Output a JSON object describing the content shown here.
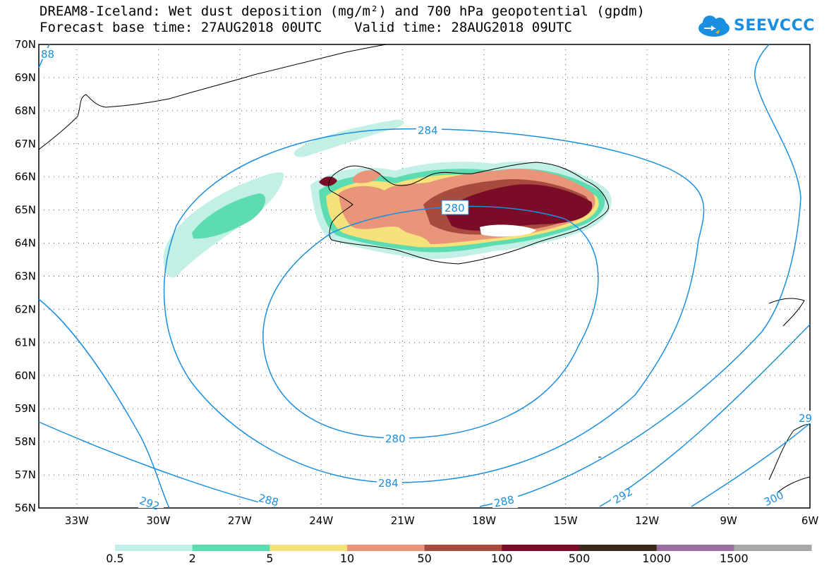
{
  "title": {
    "line1": "DREAM8-Iceland: Wet dust deposition (mg/m²) and 700 hPa geopotential (gpdm)",
    "line2": "Forecast base time: 27AUG2018 00UTC    Valid time: 28AUG2018 09UTC"
  },
  "logo": {
    "text": "SEEVCCC",
    "icon": "cloud-icon"
  },
  "lat_labels": [
    "70N",
    "69N",
    "68N",
    "67N",
    "66N",
    "65N",
    "64N",
    "63N",
    "62N",
    "61N",
    "60N",
    "59N",
    "58N",
    "57N",
    "56N"
  ],
  "lon_labels": [
    "33W",
    "30W",
    "27W",
    "24W",
    "21W",
    "18W",
    "15W",
    "12W",
    "9W",
    "6W"
  ],
  "contour_labels": [
    "88",
    "284",
    "280",
    "280",
    "284",
    "292",
    "288",
    "288",
    "292",
    "300",
    "29"
  ],
  "colorbar": {
    "labels": [
      "0.5",
      "2",
      "5",
      "10",
      "50",
      "100",
      "500",
      "1000",
      "1500"
    ],
    "colors": [
      "#c2f0e6",
      "#5ddcb1",
      "#f5e27a",
      "#e8957a",
      "#a84a3e",
      "#7a0c28",
      "#3a2a1e",
      "#9a6fa0",
      "#a8a8a8"
    ]
  },
  "colors": {
    "contour": "#1a8fe0",
    "coast": "#000000"
  }
}
